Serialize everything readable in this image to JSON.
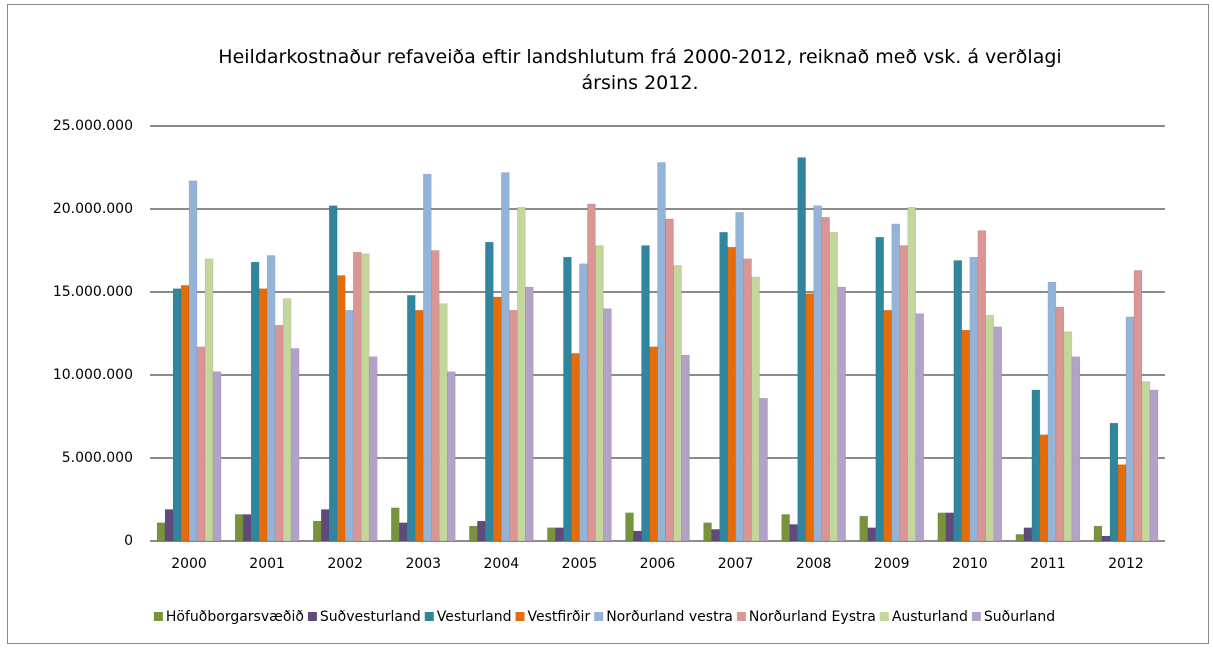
{
  "chart_data": {
    "type": "bar",
    "title": "Heildarkostnaður refaveiða eftir landshlutum frá 2000-2012, reiknað með vsk. á verðlagi ársins 2012.",
    "categories": [
      "2000",
      "2001",
      "2002",
      "2003",
      "2004",
      "2005",
      "2006",
      "2007",
      "2008",
      "2009",
      "2010",
      "2011",
      "2012"
    ],
    "series": [
      {
        "name": "Höfuðborgarsvæðið",
        "color": "#77933c",
        "values": [
          1100000,
          1600000,
          1200000,
          2000000,
          900000,
          800000,
          1700000,
          1100000,
          1600000,
          1500000,
          1700000,
          400000,
          900000
        ]
      },
      {
        "name": "Suðvesturland",
        "color": "#604a7b",
        "values": [
          1900000,
          1600000,
          1900000,
          1100000,
          1200000,
          800000,
          600000,
          700000,
          1000000,
          800000,
          1700000,
          800000,
          300000
        ]
      },
      {
        "name": "Vesturland",
        "color": "#31859c",
        "values": [
          15200000,
          16800000,
          20200000,
          14800000,
          18000000,
          17100000,
          17800000,
          18600000,
          23100000,
          18300000,
          16900000,
          9100000,
          7100000
        ]
      },
      {
        "name": "Vestfirðir",
        "color": "#e46c0a",
        "values": [
          15400000,
          15200000,
          16000000,
          13900000,
          14700000,
          11300000,
          11700000,
          17700000,
          14900000,
          13900000,
          12700000,
          6400000,
          4600000
        ]
      },
      {
        "name": "Norðurland vestra",
        "color": "#95b3d7",
        "values": [
          21700000,
          17200000,
          13900000,
          22100000,
          22200000,
          16700000,
          22800000,
          19800000,
          20200000,
          19100000,
          17100000,
          15600000,
          13500000
        ]
      },
      {
        "name": "Norðurland Eystra",
        "color": "#d99694",
        "values": [
          11700000,
          13000000,
          17400000,
          17500000,
          13900000,
          20300000,
          19400000,
          17000000,
          19500000,
          17800000,
          18700000,
          14100000,
          16300000
        ]
      },
      {
        "name": "Austurland",
        "color": "#c3d69b",
        "values": [
          17000000,
          14600000,
          17300000,
          14300000,
          20100000,
          17800000,
          16600000,
          15900000,
          18600000,
          20100000,
          13600000,
          12600000,
          9600000
        ]
      },
      {
        "name": "Suðurland",
        "color": "#b3a2c7",
        "values": [
          10200000,
          11600000,
          11100000,
          10200000,
          15300000,
          14000000,
          11200000,
          8600000,
          15300000,
          13700000,
          12900000,
          11100000,
          9100000
        ]
      }
    ],
    "ylim": [
      0,
      25000000
    ],
    "yticks": [
      0,
      {
        "value": 5000000,
        "label": "5.000.000"
      },
      {
        "value": 10000000,
        "label": "10.000.000"
      },
      {
        "value": 15000000,
        "label": "15.000.000"
      },
      {
        "value": 20000000,
        "label": "20.000.000"
      },
      {
        "value": 25000000,
        "label": "25.000.000"
      }
    ],
    "grid": true,
    "legend": "bottom"
  }
}
